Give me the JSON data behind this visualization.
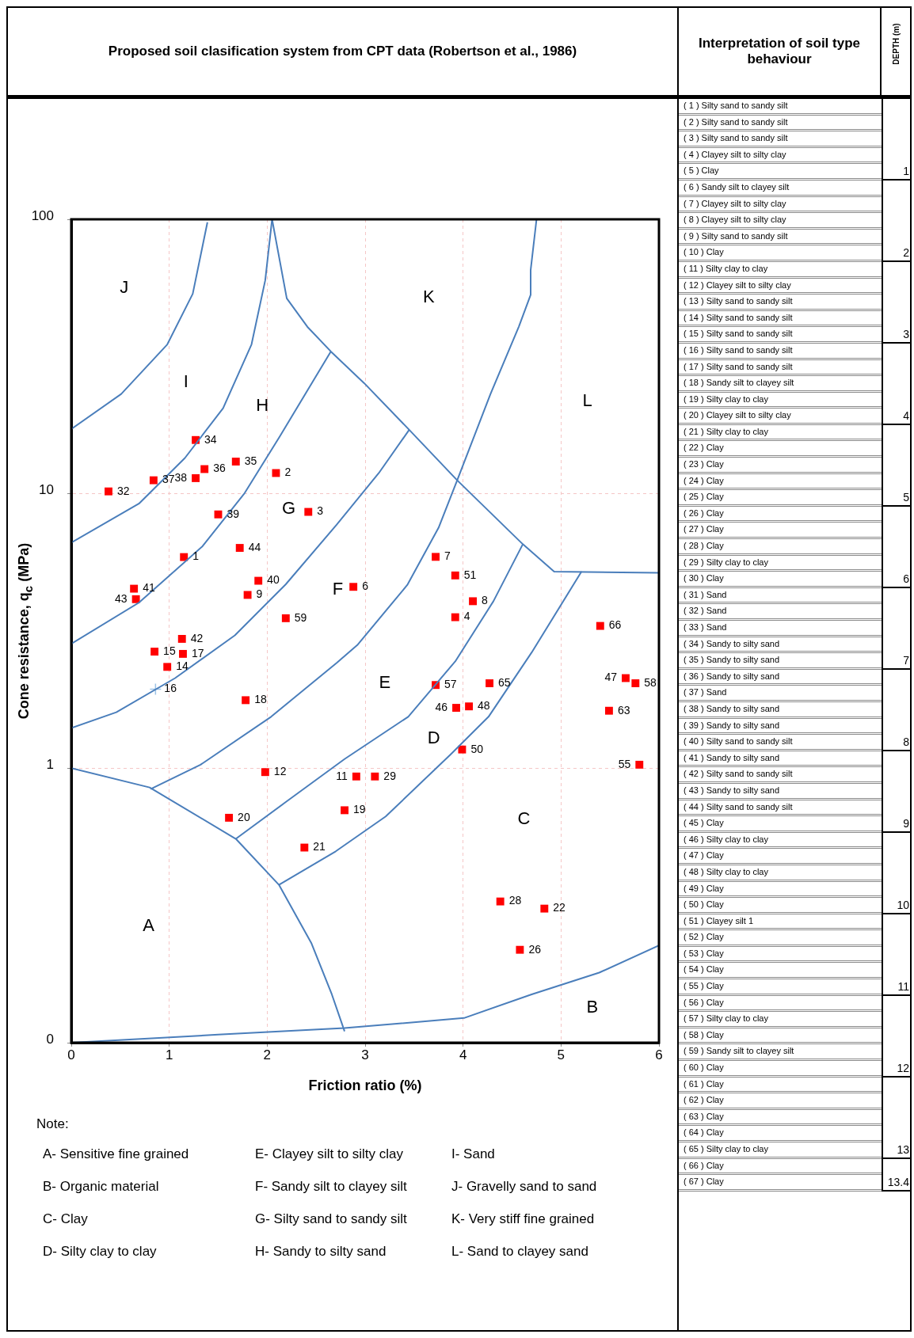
{
  "chart_data": [
    {
      "type": "scatter",
      "title": "Proposed soil clasification system from CPT data (Robertson et al., 1986)",
      "xlabel": "Friction ratio (%)",
      "ylabel": "Cone resistance, q$_{c}$ (MPa)",
      "log": "y",
      "grid": true,
      "xlim": [
        0,
        6
      ],
      "xticks": [
        0,
        1,
        2,
        3,
        4,
        5,
        6
      ],
      "ylim": [
        0.1,
        100
      ],
      "yticks": [
        {
          "value": 0.1,
          "label": "0"
        },
        1,
        10,
        100
      ],
      "series": [
        {
          "type": "line",
          "color": "#4a7ebb",
          "x": [
            0,
            0.51,
            0.98,
            1.24,
            1.39
          ],
          "values": [
            17.2,
            23.1,
            35.0,
            53.5,
            97.5
          ]
        },
        {
          "type": "line",
          "color": "#4a7ebb",
          "x": [
            0,
            0.69,
            1.16,
            1.55,
            1.84,
            1.98,
            2.05
          ],
          "values": [
            6.64,
            9.2,
            13.5,
            20.5,
            35,
            59.9,
            100
          ]
        },
        {
          "type": "line",
          "color": "#4a7ebb",
          "x": [
            0,
            0.69,
            1.34,
            1.77,
            2.13,
            2.65
          ],
          "values": [
            2.84,
            4.01,
            6.44,
            10.06,
            16.2,
            33.0
          ]
        },
        {
          "type": "line",
          "color": "#4a7ebb",
          "x": [
            0,
            0.46,
            1.06,
            1.67,
            2.19,
            2.71,
            3.14,
            3.45
          ],
          "values": [
            1.4,
            1.6,
            2.13,
            3.05,
            4.68,
            7.72,
            11.9,
            17.1
          ]
        },
        {
          "type": "line",
          "color": "#4a7ebb",
          "x": [
            2.05,
            2.2,
            2.41,
            2.65,
            2.99,
            3.45,
            3.94,
            4.61,
            4.93,
            6
          ],
          "values": [
            100,
            51.5,
            40.6,
            33.0,
            25.3,
            17.1,
            11.2,
            6.55,
            5.2,
            5.15
          ]
        },
        {
          "type": "line",
          "color": "#4a7ebb",
          "x": [
            0.81,
            1.32,
            2.04,
            2.71,
            2.92,
            3.43,
            3.75,
            3.94,
            4.28,
            4.57,
            4.69,
            4.69,
            4.75
          ],
          "values": [
            0.84,
            1.03,
            1.54,
            2.42,
            2.81,
            4.65,
            7.52,
            11.2,
            23.1,
            40.7,
            53.1,
            65.3,
            100
          ]
        },
        {
          "type": "line",
          "color": "#4a7ebb",
          "x": [
            1.68,
            2.19,
            2.79,
            3.44,
            3.92,
            4.31,
            4.61
          ],
          "values": [
            0.553,
            0.753,
            1.08,
            1.54,
            2.45,
            4.06,
            6.55
          ]
        },
        {
          "type": "line",
          "color": "#4a7ebb",
          "x": [
            2.12,
            2.7,
            3.21,
            3.87,
            4.26,
            4.7,
            5.21
          ],
          "values": [
            0.376,
            0.498,
            0.667,
            1.12,
            1.54,
            2.64,
            5.21
          ]
        },
        {
          "type": "line",
          "color": "#4a7ebb",
          "x": [
            0,
            0.8,
            1.68,
            2.12,
            2.45,
            2.66,
            2.79
          ],
          "values": [
            1.0,
            0.851,
            0.553,
            0.376,
            0.231,
            0.15,
            0.11
          ]
        },
        {
          "type": "line",
          "color": "#4a7ebb",
          "x": [
            0,
            1.5,
            2.79,
            4.01,
            4.7,
            5.39,
            6
          ],
          "values": [
            0.1,
            0.107,
            0.113,
            0.123,
            0.15,
            0.18,
            0.226
          ]
        },
        {
          "color": "#ff0000",
          "marker": "square",
          "x": [
            1.15,
            2.09,
            2.42,
            3.92,
            2.88,
            3.72,
            4.1,
            1.8,
            2.91,
            1.98,
            0.98,
            0.85,
            1.14,
            1.78,
            2.79,
            1.61,
            2.38,
            4.83,
            4.58,
            4.38,
            3.1,
            0.38,
            1.27,
            1.68,
            1.36,
            0.84,
            1.27,
            1.5,
            1.91,
            0.64,
            1.13,
            0.66,
            1.72,
            3.93,
            5.66,
            4.06,
            3.99,
            3.92,
            5.8,
            3.72,
            5.76,
            2.19,
            5.49,
            4.27,
            5.4
          ],
          "values": [
            5.88,
            11.9,
            8.59,
            3.55,
            4.58,
            5.89,
            4.06,
            4.28,
            0.933,
            0.968,
            2.34,
            2.66,
            2.61,
            1.77,
            0.703,
            0.66,
            0.514,
            0.308,
            0.218,
            0.327,
            0.933,
            10.2,
            15.7,
            13.1,
            12.3,
            11.2,
            11.4,
            8.41,
            4.82,
            4.51,
            2.96,
            4.13,
            6.35,
            1.66,
            2.13,
            1.68,
            1.17,
            5.04,
            1.03,
            2.01,
            2.04,
            3.52,
            1.62,
            2.04,
            3.3
          ]
        },
        {
          "color": "#9dc3e6",
          "marker": "cross",
          "x": [
            0.86
          ],
          "values": [
            1.94
          ]
        }
      ],
      "annotations": [
        "J",
        "I",
        "H",
        "G",
        "F",
        "E",
        "D",
        "C",
        "A",
        "B",
        "K",
        "L",
        {
          "text": "1",
          "x": 1.15,
          "y": 5.88
        },
        {
          "text": "2",
          "x": 2.09,
          "y": 11.9
        },
        {
          "text": "3",
          "x": 2.42,
          "y": 8.59
        },
        {
          "text": "4",
          "x": 3.92,
          "y": 3.55
        },
        {
          "text": "6",
          "x": 2.88,
          "y": 4.58
        },
        {
          "text": "7",
          "x": 3.72,
          "y": 5.89
        },
        {
          "text": "8",
          "x": 4.1,
          "y": 4.06
        },
        {
          "text": "9",
          "x": 1.8,
          "y": 4.28
        },
        {
          "text": "11",
          "x": 2.91,
          "y": 0.933
        },
        {
          "text": "12",
          "x": 1.98,
          "y": 0.968
        },
        {
          "text": "14",
          "x": 0.98,
          "y": 2.34
        },
        {
          "text": "15",
          "x": 0.85,
          "y": 2.66
        },
        {
          "text": "16",
          "x": 0.86,
          "y": 1.94
        },
        {
          "text": "17",
          "x": 1.14,
          "y": 2.61
        },
        {
          "text": "18",
          "x": 1.78,
          "y": 1.77
        },
        {
          "text": "19",
          "x": 2.79,
          "y": 0.703
        },
        {
          "text": "20",
          "x": 1.61,
          "y": 0.66
        },
        {
          "text": "21",
          "x": 2.38,
          "y": 0.514
        },
        {
          "text": "22",
          "x": 4.83,
          "y": 0.308
        },
        {
          "text": "26",
          "x": 4.58,
          "y": 0.218
        },
        {
          "text": "28",
          "x": 4.38,
          "y": 0.327
        },
        {
          "text": "29",
          "x": 3.1,
          "y": 0.933
        },
        {
          "text": "32",
          "x": 0.38,
          "y": 10.2
        },
        {
          "text": "34",
          "x": 1.27,
          "y": 15.7
        },
        {
          "text": "35",
          "x": 1.68,
          "y": 13.1
        },
        {
          "text": "36",
          "x": 1.36,
          "y": 12.3
        },
        {
          "text": "37",
          "x": 0.84,
          "y": 11.2
        },
        {
          "text": "38",
          "x": 1.27,
          "y": 11.4
        },
        {
          "text": "39",
          "x": 1.5,
          "y": 8.41
        },
        {
          "text": "40",
          "x": 1.91,
          "y": 4.82
        },
        {
          "text": "41",
          "x": 0.64,
          "y": 4.51
        },
        {
          "text": "42",
          "x": 1.13,
          "y": 2.96
        },
        {
          "text": "43",
          "x": 0.66,
          "y": 4.13
        },
        {
          "text": "44",
          "x": 1.72,
          "y": 6.35
        },
        {
          "text": "46",
          "x": 3.93,
          "y": 1.66
        },
        {
          "text": "47",
          "x": 5.66,
          "y": 2.13
        },
        {
          "text": "48",
          "x": 4.06,
          "y": 1.68
        },
        {
          "text": "50",
          "x": 3.99,
          "y": 1.17
        },
        {
          "text": "51",
          "x": 3.92,
          "y": 5.04
        },
        {
          "text": "55",
          "x": 5.8,
          "y": 1.03
        },
        {
          "text": "57",
          "x": 3.72,
          "y": 2.01
        },
        {
          "text": "58",
          "x": 5.76,
          "y": 2.04
        },
        {
          "text": "59",
          "x": 2.19,
          "y": 3.52
        },
        {
          "text": "63",
          "x": 5.49,
          "y": 1.62
        },
        {
          "text": "65",
          "x": 4.27,
          "y": 2.04
        },
        {
          "text": "66",
          "x": 5.4,
          "y": 3.3
        },
        "Note:",
        "A- Sensitive fine grained",
        "B- Organic material",
        "C- Clay",
        "D- Silty clay to clay",
        "E- Clayey silt to silty clay",
        "F- Sandy silt to clayey silt",
        "G- Silty sand to sandy silt",
        "H- Sandy to silty sand",
        "I- Sand",
        "J- Gravelly sand to sand",
        "K- Very stiff fine grained",
        "L- Sand to clayey sand"
      ]
    },
    {
      "type": "other",
      "title": "Interpretation of soil type behaviour",
      "ylabel": "DEPTH (m)",
      "y_categories": [
        "( 1 ) Silty sand to sandy silt",
        "( 2 ) Silty sand to sandy silt",
        "( 3 ) Silty sand to sandy silt",
        "( 4 ) Clayey silt to silty clay",
        "( 5 ) Clay",
        "( 6 ) Sandy silt to clayey silt",
        "( 7 ) Clayey silt to silty clay",
        "( 8 ) Clayey silt to silty clay",
        "( 9 ) Silty sand to sandy silt",
        "( 10 ) Clay",
        "( 11 ) Silty clay to clay",
        "( 12 ) Clayey silt to silty clay",
        "( 13 ) Silty sand to sandy silt",
        "( 14 ) Silty sand to sandy silt",
        "( 15 ) Silty sand to sandy silt",
        "( 16 ) Silty sand to sandy silt",
        "( 17 ) Silty sand to sandy silt",
        "( 18 ) Sandy silt to clayey silt",
        "( 19 ) Silty clay to clay",
        "( 20 ) Clayey silt to silty clay",
        "( 21 ) Silty clay to clay",
        "( 22 ) Clay",
        "( 23 ) Clay",
        "( 24 ) Clay",
        "( 25 ) Clay",
        "( 26 ) Clay",
        "( 27 ) Clay",
        "( 28 ) Clay",
        "( 29 ) Silty clay to clay",
        "( 30 ) Clay",
        "( 31 ) Sand",
        "( 32 ) Sand",
        "( 33 ) Sand",
        "( 34 ) Sandy to silty sand",
        "( 35 ) Sandy to silty sand",
        "( 36 ) Sandy to silty sand",
        "( 37 ) Sand",
        "( 38 ) Sandy to silty sand",
        "( 39 ) Sandy to silty sand",
        "( 40 ) Silty sand to sandy silt",
        "( 41 ) Sandy to silty sand",
        "( 42 ) Silty sand to sandy silt",
        "( 43 ) Sandy to silty sand",
        "( 44 ) Silty sand to sandy silt",
        "( 45 ) Clay",
        "( 46 ) Silty clay to clay",
        "( 47 ) Clay",
        "( 48 ) Silty clay to clay",
        "( 49 ) Clay",
        "( 50 ) Clay",
        "( 51 ) Clayey silt 1",
        "( 52 ) Clay",
        "( 53 ) Clay",
        "( 54 ) Clay",
        "( 55 ) Clay",
        "( 56 ) Clay",
        "( 57 ) Silty clay to clay",
        "( 58 ) Clay",
        "( 59 ) Sandy silt to clayey silt",
        "( 60 ) Clay",
        "( 61 ) Clay",
        "( 62 ) Clay",
        "( 63 ) Clay",
        "( 64 ) Clay",
        "( 65 ) Silty clay to clay",
        "( 66 ) Clay",
        "( 67 ) Clay"
      ],
      "y2_categories": [
        null,
        null,
        null,
        null,
        "1",
        null,
        null,
        null,
        null,
        "2",
        null,
        null,
        null,
        null,
        "3",
        null,
        null,
        null,
        null,
        "4",
        null,
        null,
        null,
        null,
        "5",
        null,
        null,
        null,
        null,
        "6",
        null,
        null,
        null,
        null,
        "7",
        null,
        null,
        null,
        null,
        "8",
        null,
        null,
        null,
        null,
        "9",
        null,
        null,
        null,
        null,
        "10",
        null,
        null,
        null,
        null,
        "11",
        null,
        null,
        null,
        null,
        "12",
        null,
        null,
        null,
        null,
        "13",
        null,
        "13.4"
      ]
    }
  ]
}
